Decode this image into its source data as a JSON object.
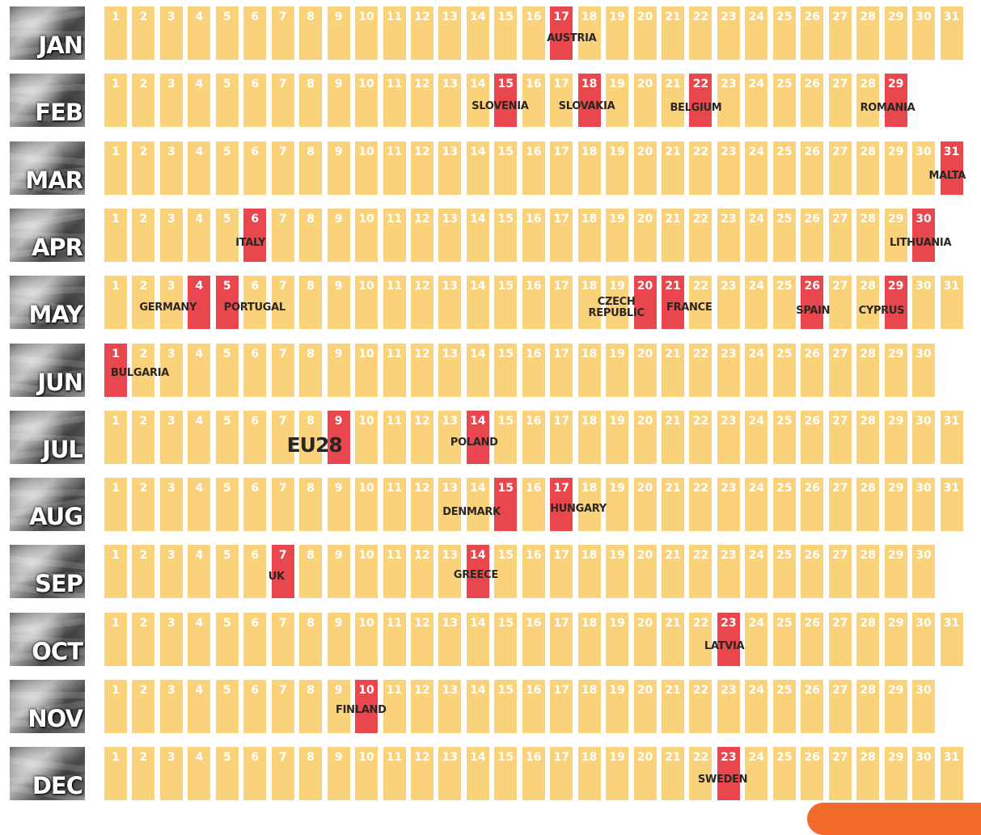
{
  "colors": {
    "day": "#f9d27a",
    "highlight": "#e9474d",
    "label": "#2b2621"
  },
  "months": [
    {
      "label": "JAN",
      "days": 31,
      "events": [
        {
          "day": 17,
          "country": "AUSTRIA"
        }
      ]
    },
    {
      "label": "FEB",
      "days": 29,
      "events": [
        {
          "day": 15,
          "country": "SLOVENIA"
        },
        {
          "day": 18,
          "country": "SLOVAKIA"
        },
        {
          "day": 22,
          "country": "BELGIUM"
        },
        {
          "day": 29,
          "country": "ROMANIA"
        }
      ]
    },
    {
      "label": "MAR",
      "days": 31,
      "events": [
        {
          "day": 31,
          "country": "MALTA"
        }
      ]
    },
    {
      "label": "APR",
      "days": 30,
      "events": [
        {
          "day": 6,
          "country": "ITALY"
        },
        {
          "day": 30,
          "country": "LITHUANIA"
        }
      ]
    },
    {
      "label": "MAY",
      "days": 31,
      "events": [
        {
          "day": 4,
          "country": "GERMANY"
        },
        {
          "day": 5,
          "country": "PORTUGAL"
        },
        {
          "day": 20,
          "country": "CZECH REPUBLIC",
          "lines": [
            "CZECH",
            "REPUBLIC"
          ]
        },
        {
          "day": 21,
          "country": "FRANCE"
        },
        {
          "day": 26,
          "country": "SPAIN"
        },
        {
          "day": 29,
          "country": "CYPRUS"
        }
      ]
    },
    {
      "label": "JUN",
      "days": 30,
      "events": [
        {
          "day": 1,
          "country": "BULGARIA"
        }
      ]
    },
    {
      "label": "JUL",
      "days": 31,
      "events": [
        {
          "day": 9,
          "country": "EU28"
        },
        {
          "day": 14,
          "country": "POLAND"
        }
      ]
    },
    {
      "label": "AUG",
      "days": 31,
      "events": [
        {
          "day": 15,
          "country": "DENMARK"
        },
        {
          "day": 17,
          "country": "HUNGARY"
        }
      ]
    },
    {
      "label": "SEP",
      "days": 30,
      "events": [
        {
          "day": 7,
          "country": "UK"
        },
        {
          "day": 14,
          "country": "GREECE"
        }
      ]
    },
    {
      "label": "OCT",
      "days": 31,
      "events": [
        {
          "day": 23,
          "country": "LATVIA"
        }
      ]
    },
    {
      "label": "NOV",
      "days": 30,
      "events": [
        {
          "day": 10,
          "country": "FINLAND"
        }
      ]
    },
    {
      "label": "DEC",
      "days": 31,
      "events": [
        {
          "day": 23,
          "country": "SWEDEN"
        }
      ]
    }
  ]
}
